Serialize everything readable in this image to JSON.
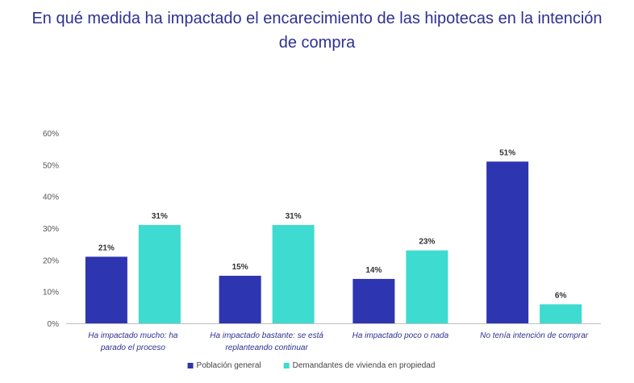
{
  "title_lines": [
    "En qué medida ha impactado el encarecimiento de las hipotecas en la intención",
    "de compra"
  ],
  "chart_data": {
    "type": "bar",
    "title": "En qué medida ha impactado el encarecimiento de las hipotecas en la intención de compra",
    "categories": [
      [
        "Ha impactado mucho: ha",
        "parado el proceso"
      ],
      [
        "Ha impactado bastante: se está",
        "replanteando continuar"
      ],
      [
        "Ha impactado poco o nada"
      ],
      [
        "No tenía intención de comprar"
      ]
    ],
    "series": [
      {
        "name": "Población general",
        "color": "#2E35B0",
        "values": [
          21,
          15,
          14,
          51
        ],
        "labels": [
          "21%",
          "15%",
          "14%",
          "51%"
        ]
      },
      {
        "name": "Demandantes de vivienda en propiedad",
        "color": "#3DDBD0",
        "values": [
          31,
          31,
          23,
          6
        ],
        "labels": [
          "31%",
          "31%",
          "23%",
          "6%"
        ]
      }
    ],
    "ylim": [
      0,
      60
    ],
    "yticks": [
      0,
      10,
      20,
      30,
      40,
      50,
      60
    ],
    "ytick_labels": [
      "0%",
      "10%",
      "20%",
      "30%",
      "40%",
      "50%",
      "60%"
    ],
    "legend_position": "bottom",
    "grid": false,
    "xlabel": "",
    "ylabel": ""
  }
}
